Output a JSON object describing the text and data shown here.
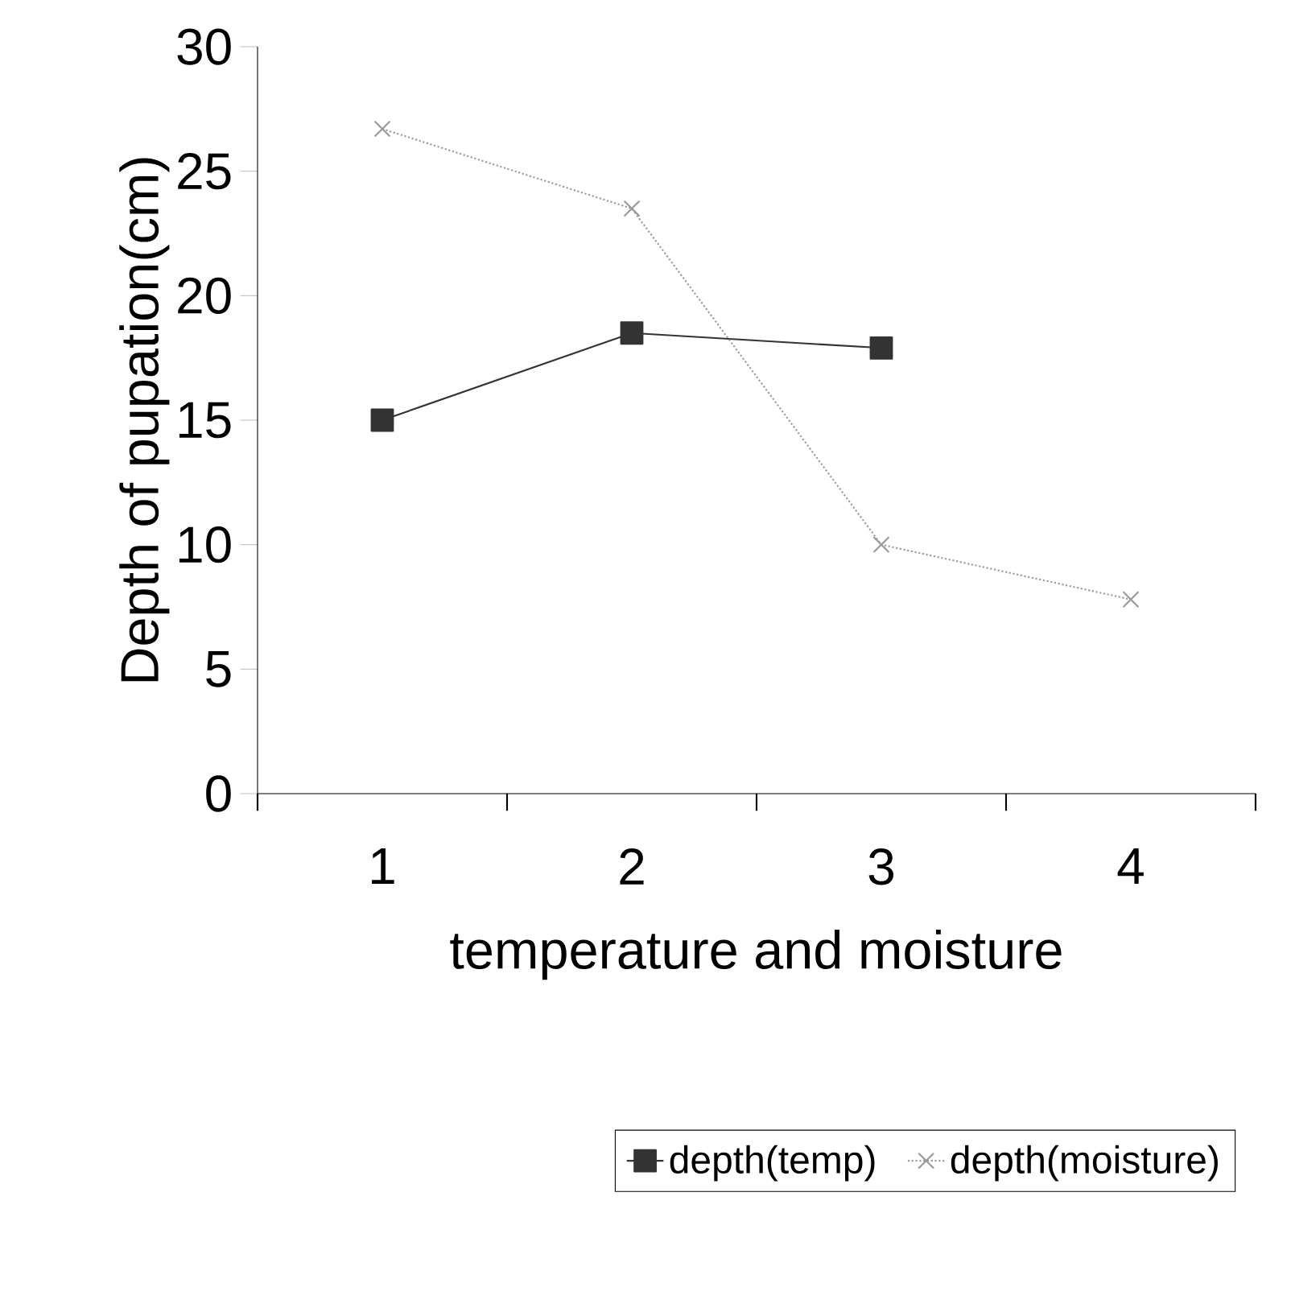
{
  "chart_data": {
    "type": "line",
    "xlabel": "temperature and moisture",
    "ylabel": "Depth of pupation(cm)",
    "categories": [
      "1",
      "2",
      "3",
      "4"
    ],
    "series": [
      {
        "name": "depth(temp)",
        "color": "#333333",
        "values": [
          15.0,
          18.5,
          17.9,
          null
        ],
        "marker": "square",
        "line_style": "solid"
      },
      {
        "name": "depth(moisture)",
        "color": "#999999",
        "values": [
          26.7,
          23.5,
          10.0,
          7.8
        ],
        "marker": "cross",
        "line_style": "dotted"
      }
    ],
    "ylim": [
      0,
      30
    ],
    "yticks": [
      0,
      5,
      10,
      15,
      20,
      25,
      30
    ],
    "grid": false,
    "legend": "bottom"
  }
}
